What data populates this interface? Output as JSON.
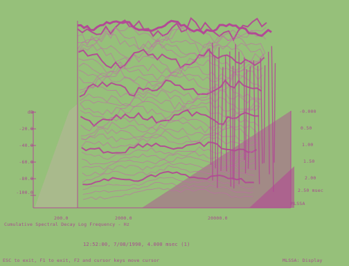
{
  "window": {
    "background": "#96c07a",
    "accent": "#b24a95",
    "accent_light": "#c06aa8"
  },
  "plot": {
    "left_axis_ticks": [
      "dB",
      "-20.0",
      "-40.0",
      "-60.0",
      "-80.0",
      "-100.0"
    ],
    "bottom_axis_ticks": [
      "200.0",
      "2000.0",
      "20000.0"
    ],
    "bottom_axis_caption": "Cumulative Spectral Decay   Log Frequency - Hz",
    "right_axis_ticks": [
      "-0.000",
      "0.50",
      "1.00",
      "1.50",
      "2.00",
      "2.50 msec"
    ],
    "right_axis_caption": "MLSSA"
  },
  "status": {
    "timestamp_line": "12:52:00,  7/08/1990,  4.000 msec (1)",
    "help_line": "ESC to exit, F1 to exit, F2 and cursor keys move cursor",
    "program_label": "MLSSA: Display"
  }
}
